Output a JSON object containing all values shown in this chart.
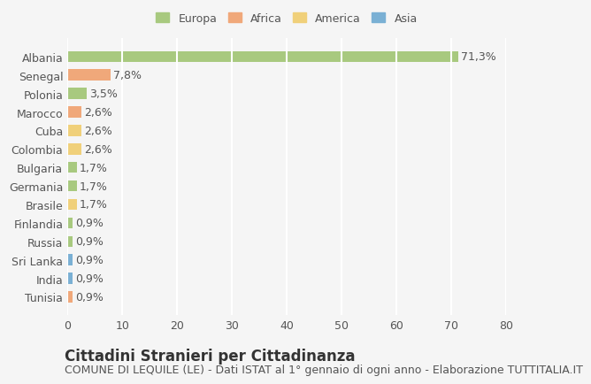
{
  "categories": [
    "Albania",
    "Senegal",
    "Polonia",
    "Marocco",
    "Cuba",
    "Colombia",
    "Bulgaria",
    "Germania",
    "Brasile",
    "Finlandia",
    "Russia",
    "Sri Lanka",
    "India",
    "Tunisia"
  ],
  "values": [
    71.3,
    7.8,
    3.5,
    2.6,
    2.6,
    2.6,
    1.7,
    1.7,
    1.7,
    0.9,
    0.9,
    0.9,
    0.9,
    0.9
  ],
  "labels": [
    "71,3%",
    "7,8%",
    "3,5%",
    "2,6%",
    "2,6%",
    "2,6%",
    "1,7%",
    "1,7%",
    "1,7%",
    "0,9%",
    "0,9%",
    "0,9%",
    "0,9%",
    "0,9%"
  ],
  "continent": [
    "Europa",
    "Africa",
    "Europa",
    "Africa",
    "America",
    "America",
    "Europa",
    "Europa",
    "America",
    "Europa",
    "Europa",
    "Asia",
    "Asia",
    "Africa"
  ],
  "colors": {
    "Europa": "#a8c97f",
    "Africa": "#f0a87a",
    "America": "#f0d07a",
    "Asia": "#7ab0d4"
  },
  "legend_colors": {
    "Europa": "#a8c97f",
    "Africa": "#f0a87a",
    "America": "#f0d07a",
    "Asia": "#7ab0d4"
  },
  "xlim": [
    0,
    80
  ],
  "xticks": [
    0,
    10,
    20,
    30,
    40,
    50,
    60,
    70,
    80
  ],
  "title": "Cittadini Stranieri per Cittadinanza",
  "subtitle": "COMUNE DI LEQUILE (LE) - Dati ISTAT al 1° gennaio di ogni anno - Elaborazione TUTTITALIA.IT",
  "background_color": "#f5f5f5",
  "grid_color": "#ffffff",
  "bar_height": 0.6,
  "label_fontsize": 9,
  "tick_fontsize": 9,
  "title_fontsize": 12,
  "subtitle_fontsize": 9
}
